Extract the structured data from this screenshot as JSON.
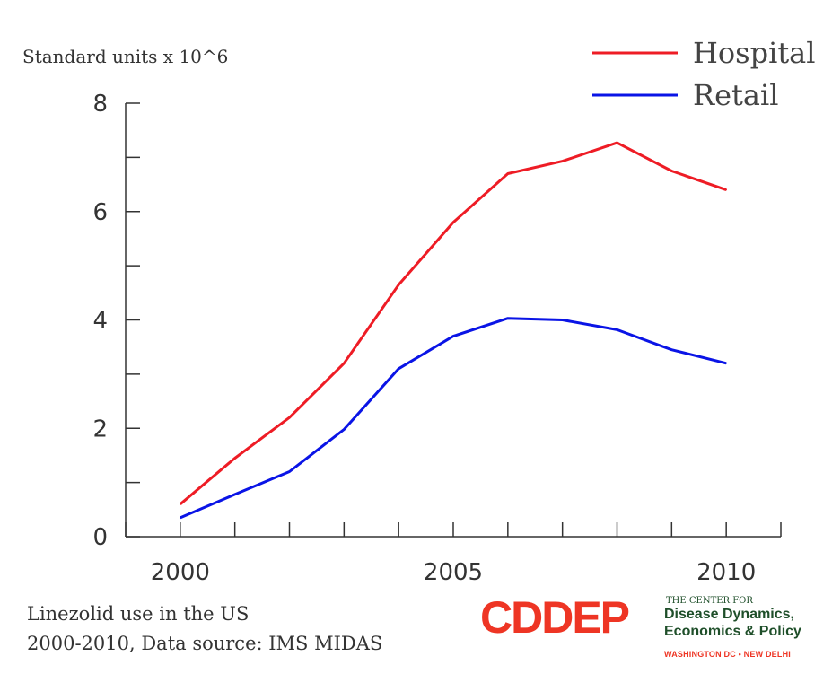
{
  "chart_data": {
    "type": "line",
    "ylabel": "Standard units x 10^6",
    "xlabel": "",
    "title": "",
    "x": [
      2000,
      2001,
      2002,
      2003,
      2004,
      2005,
      2006,
      2007,
      2008,
      2009,
      2010
    ],
    "series": [
      {
        "name": "Hospital",
        "color": "#ee1c25",
        "values": [
          0.6,
          1.45,
          2.2,
          3.2,
          4.65,
          5.8,
          6.7,
          6.93,
          7.27,
          6.75,
          6.4
        ]
      },
      {
        "name": "Retail",
        "color": "#0a14e6",
        "values": [
          0.35,
          0.78,
          1.2,
          1.98,
          3.1,
          3.7,
          4.03,
          4.0,
          3.82,
          3.45,
          3.2
        ]
      }
    ],
    "xlim": [
      1999.0,
      2011.0
    ],
    "ylim": [
      0,
      8
    ],
    "yticks_major": [
      0,
      2,
      4,
      6,
      8
    ],
    "yticks_minor": [
      1,
      3,
      5,
      7
    ],
    "xtick_labels": [
      "2000",
      "2005",
      "2010"
    ],
    "xtick_label_values": [
      2000,
      2005,
      2010
    ],
    "grid": false,
    "legend_position": "top-right"
  },
  "caption": {
    "line1": "Linezolid use in the US",
    "line2": "2000-2010, Data source: IMS MIDAS"
  },
  "logo": {
    "mark": "CDDEP",
    "tagline_small": "THE CENTER FOR",
    "tagline_1": "Disease Dynamics,",
    "tagline_2": "Economics & Policy",
    "locations": "WASHINGTON DC • NEW DELHI",
    "color_mark": "#ee3524",
    "color_text": "#1f4f2a"
  }
}
